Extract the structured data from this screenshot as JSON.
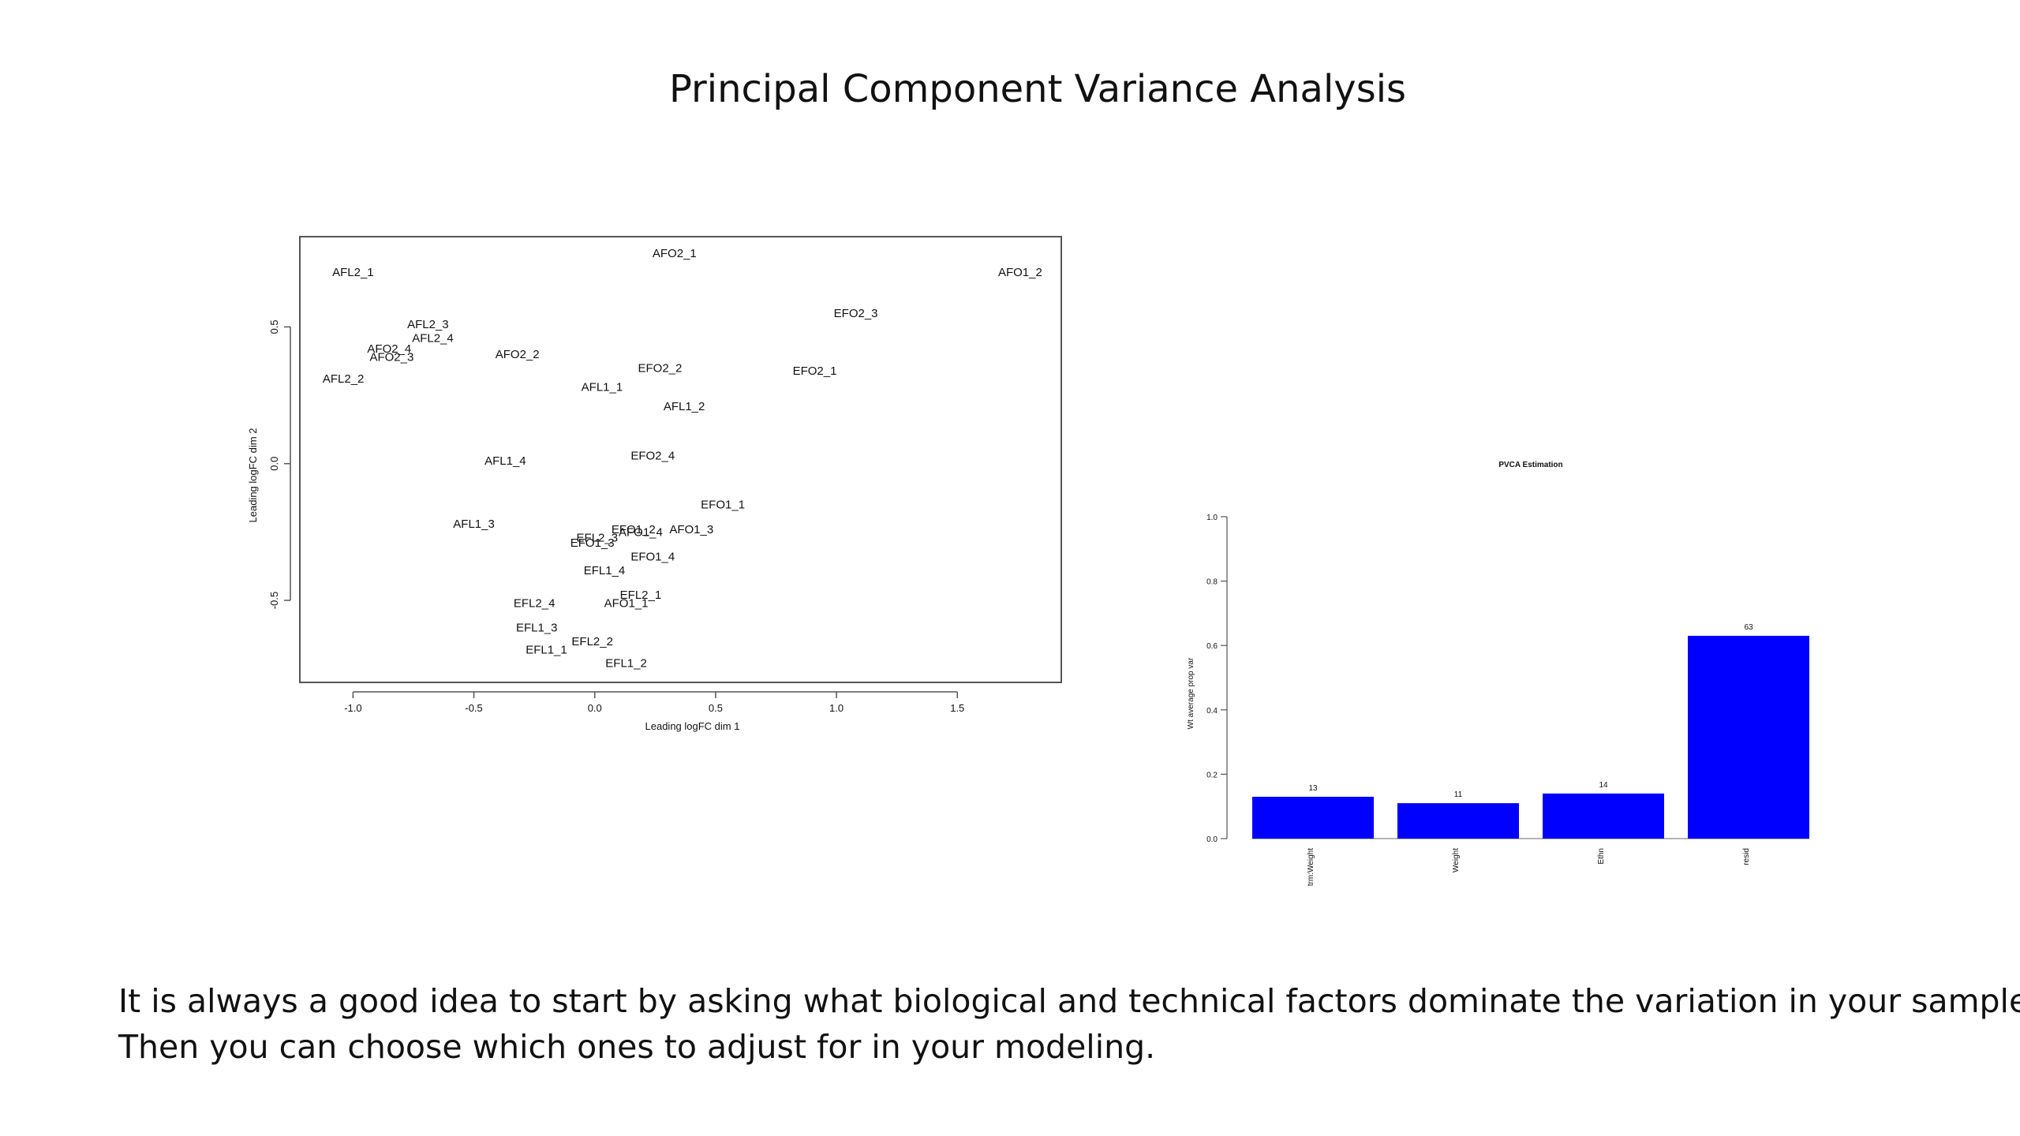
{
  "slide": {
    "title": "Principal Component Variance Analysis",
    "body_lines": [
      "It is always a good idea to start by asking what biological and technical factors dominate the variation in your samples.",
      "Then you can choose which ones to adjust for in your modeling."
    ]
  },
  "chart_data": [
    {
      "type": "scatter",
      "title": "",
      "xlabel": "Leading logFC dim 1",
      "ylabel": "Leading logFC dim 2",
      "xlim": [
        -1.22,
        1.93
      ],
      "ylim": [
        -0.8,
        0.83
      ],
      "xticks": [
        -1.0,
        -0.5,
        0.0,
        0.5,
        1.0,
        1.5
      ],
      "yticks": [
        -0.5,
        0.0,
        0.5
      ],
      "xtick_labels": [
        "-1.0",
        "-0.5",
        "0.0",
        "0.5",
        "1.0",
        "1.5"
      ],
      "ytick_labels": [
        "-0.5",
        "0.0",
        "0.5"
      ],
      "points": [
        {
          "label": "AFL2_1",
          "x": -1.0,
          "y": 0.7
        },
        {
          "label": "AFO2_1",
          "x": 0.33,
          "y": 0.77
        },
        {
          "label": "AFO1_2",
          "x": 1.76,
          "y": 0.7
        },
        {
          "label": "EFO2_3",
          "x": 1.08,
          "y": 0.55
        },
        {
          "label": "AFL2_3",
          "x": -0.69,
          "y": 0.51
        },
        {
          "label": "AFL2_4",
          "x": -0.67,
          "y": 0.46
        },
        {
          "label": "AFO2_4",
          "x": -0.85,
          "y": 0.42
        },
        {
          "label": "AFO2_3",
          "x": -0.84,
          "y": 0.39
        },
        {
          "label": "AFO2_2",
          "x": -0.32,
          "y": 0.4
        },
        {
          "label": "AFL2_2",
          "x": -1.04,
          "y": 0.31
        },
        {
          "label": "EFO2_2",
          "x": 0.27,
          "y": 0.35
        },
        {
          "label": "EFO2_1",
          "x": 0.91,
          "y": 0.34
        },
        {
          "label": "AFL1_1",
          "x": 0.03,
          "y": 0.28
        },
        {
          "label": "AFL1_2",
          "x": 0.37,
          "y": 0.21
        },
        {
          "label": "AFL1_4",
          "x": -0.37,
          "y": 0.01
        },
        {
          "label": "EFO2_4",
          "x": 0.24,
          "y": 0.03
        },
        {
          "label": "EFO1_1",
          "x": 0.53,
          "y": -0.15
        },
        {
          "label": "AFL1_3",
          "x": -0.5,
          "y": -0.22
        },
        {
          "label": "EFL2_3",
          "x": 0.01,
          "y": -0.27
        },
        {
          "label": "EFO1_3",
          "x": -0.01,
          "y": -0.29
        },
        {
          "label": "EFO1_2",
          "x": 0.16,
          "y": -0.24
        },
        {
          "label": "AFO1_4",
          "x": 0.19,
          "y": -0.25
        },
        {
          "label": "AFO1_3",
          "x": 0.4,
          "y": -0.24
        },
        {
          "label": "EFO1_4",
          "x": 0.24,
          "y": -0.34
        },
        {
          "label": "EFL1_4",
          "x": 0.04,
          "y": -0.39
        },
        {
          "label": "EFL2_1",
          "x": 0.19,
          "y": -0.48
        },
        {
          "label": "AFO1_1",
          "x": 0.13,
          "y": -0.51
        },
        {
          "label": "EFL2_4",
          "x": -0.25,
          "y": -0.51
        },
        {
          "label": "EFL1_3",
          "x": -0.24,
          "y": -0.6
        },
        {
          "label": "EFL2_2",
          "x": -0.01,
          "y": -0.65
        },
        {
          "label": "EFL1_1",
          "x": -0.2,
          "y": -0.68
        },
        {
          "label": "EFL1_2",
          "x": 0.13,
          "y": -0.73
        }
      ],
      "grid": false,
      "legend": "none"
    },
    {
      "type": "bar",
      "title": "PVCA Estimation",
      "xlabel": "",
      "ylabel": "Wt average prop var",
      "ylim": [
        0,
        1
      ],
      "yticks": [
        0.0,
        0.2,
        0.4,
        0.6,
        0.8,
        1.0
      ],
      "ytick_labels": [
        "0.0",
        "0.2",
        "0.4",
        "0.6",
        "0.8",
        "1.0"
      ],
      "categories": [
        "trm:Weight",
        "Weight",
        "Ethn",
        "resid"
      ],
      "values": [
        0.13,
        0.11,
        0.14,
        0.63
      ],
      "data_labels": [
        "13",
        "11",
        "14",
        "63"
      ],
      "bar_color": "#0000ff",
      "grid": false,
      "legend": "none"
    }
  ]
}
